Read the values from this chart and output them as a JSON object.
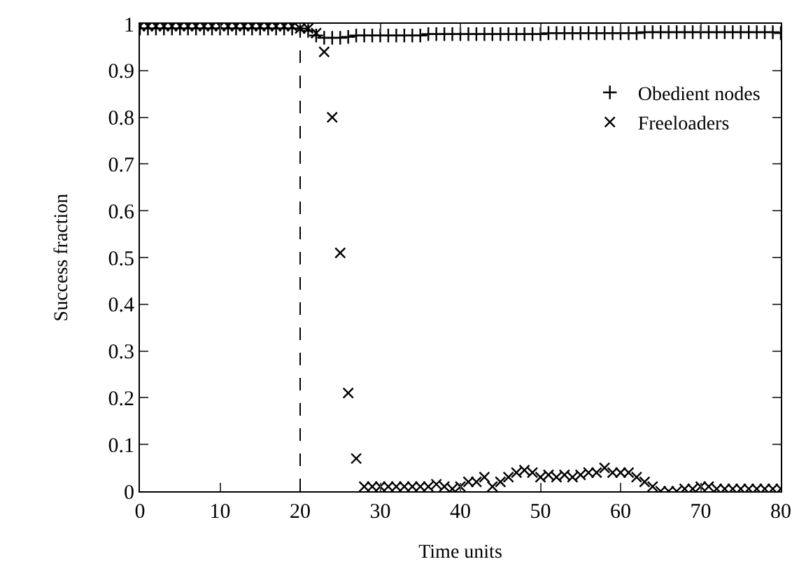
{
  "chart_data": {
    "type": "scatter",
    "xlabel": "Time units",
    "ylabel": "Success fraction",
    "x": [
      0,
      1,
      2,
      3,
      4,
      5,
      6,
      7,
      8,
      9,
      10,
      11,
      12,
      13,
      14,
      15,
      16,
      17,
      18,
      19,
      20,
      21,
      22,
      23,
      24,
      25,
      26,
      27,
      28,
      29,
      30,
      31,
      32,
      33,
      34,
      35,
      36,
      37,
      38,
      39,
      40,
      41,
      42,
      43,
      44,
      45,
      46,
      47,
      48,
      49,
      50,
      51,
      52,
      53,
      54,
      55,
      56,
      57,
      58,
      59,
      60,
      61,
      62,
      63,
      64,
      65,
      66,
      67,
      68,
      69,
      70,
      71,
      72,
      73,
      74,
      75,
      76,
      77,
      78,
      79,
      80
    ],
    "series": [
      {
        "name": "Obedient nodes",
        "color": "#000000",
        "marker": "plus",
        "values": [
          0.99,
          0.99,
          0.99,
          0.99,
          0.99,
          0.99,
          0.99,
          0.99,
          0.99,
          0.99,
          0.99,
          0.99,
          0.99,
          0.99,
          0.99,
          0.99,
          0.99,
          0.99,
          0.99,
          0.99,
          0.99,
          0.985,
          0.975,
          0.97,
          0.97,
          0.97,
          0.972,
          0.975,
          0.975,
          0.975,
          0.975,
          0.975,
          0.975,
          0.975,
          0.975,
          0.975,
          0.978,
          0.978,
          0.978,
          0.978,
          0.978,
          0.978,
          0.978,
          0.978,
          0.978,
          0.978,
          0.978,
          0.978,
          0.978,
          0.978,
          0.978,
          0.98,
          0.98,
          0.98,
          0.98,
          0.98,
          0.98,
          0.98,
          0.98,
          0.98,
          0.98,
          0.98,
          0.98,
          0.982,
          0.982,
          0.982,
          0.982,
          0.982,
          0.982,
          0.982,
          0.982,
          0.982,
          0.982,
          0.982,
          0.982,
          0.982,
          0.982,
          0.982,
          0.982,
          0.982,
          0.98
        ]
      },
      {
        "name": "Freeloaders",
        "color": "#000000",
        "marker": "cross",
        "values": [
          0.995,
          0.995,
          0.995,
          0.995,
          0.995,
          0.995,
          0.995,
          0.995,
          0.995,
          0.995,
          0.995,
          0.995,
          0.995,
          0.995,
          0.995,
          0.995,
          0.995,
          0.995,
          0.995,
          0.995,
          0.99,
          0.99,
          0.98,
          0.94,
          0.8,
          0.51,
          0.21,
          0.07,
          0.01,
          0.01,
          0.01,
          0.01,
          0.01,
          0.01,
          0.01,
          0.01,
          0.01,
          0.015,
          0.01,
          0.005,
          0.01,
          0.02,
          0.02,
          0.03,
          0.01,
          0.02,
          0.03,
          0.04,
          0.045,
          0.04,
          0.03,
          0.035,
          0.03,
          0.035,
          0.03,
          0.035,
          0.04,
          0.04,
          0.05,
          0.04,
          0.04,
          0.04,
          0.03,
          0.02,
          0.01,
          0.0,
          0.0,
          0.0,
          0.005,
          0.005,
          0.01,
          0.01,
          0.005,
          0.005,
          0.005,
          0.005,
          0.005,
          0.005,
          0.005,
          0.005,
          0.005
        ]
      }
    ],
    "xlim": [
      0,
      80
    ],
    "xticks": [
      0,
      10,
      20,
      30,
      40,
      50,
      60,
      70,
      80
    ],
    "ylim": [
      0,
      1
    ],
    "yticks": [
      0,
      0.1,
      0.2,
      0.3,
      0.4,
      0.5,
      0.6,
      0.7,
      0.8,
      0.9,
      1
    ],
    "ref_lines": [
      {
        "axis": "x",
        "value": 20,
        "color": "#000000",
        "line_style": "dashed"
      }
    ],
    "legend": "top right"
  }
}
